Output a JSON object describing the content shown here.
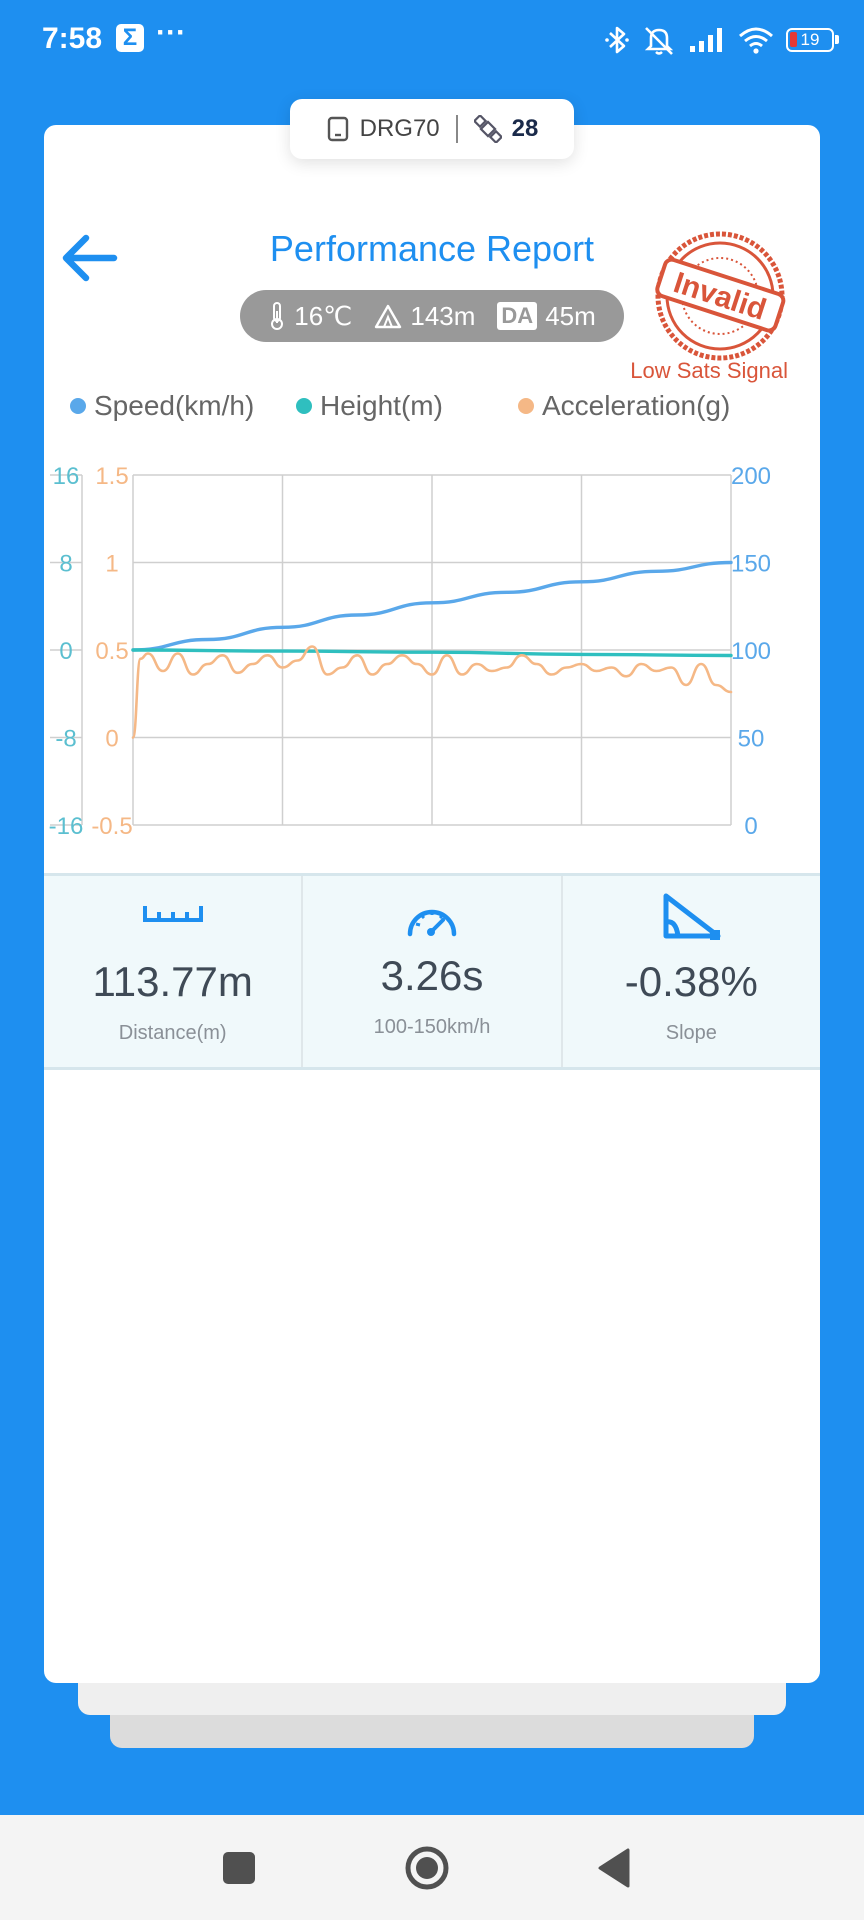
{
  "status_bar": {
    "time": "7:58",
    "app_icon": "sigma-icon",
    "sigma_glyph": "Σ",
    "overflow": "···",
    "battery_level": "19",
    "icons": [
      "bluetooth-icon",
      "mute-icon",
      "signal-icon",
      "wifi-icon",
      "battery-icon"
    ]
  },
  "device": {
    "name": "DRG70",
    "satellites": "28"
  },
  "header": {
    "title": "Performance Report",
    "temperature": "16℃",
    "altitude": "143m",
    "da_label": "DA",
    "density_altitude": "45m",
    "stamp_text": "Invalid",
    "warning": "Low Sats Signal"
  },
  "legend": [
    {
      "label": "Speed(km/h)",
      "color": "#5aa8ea"
    },
    {
      "label": "Height(m)",
      "color": "#2fbfbf"
    },
    {
      "label": "Acceleration(g)",
      "color": "#f5b886"
    }
  ],
  "chart_data": {
    "type": "line",
    "x_range": [
      0,
      4
    ],
    "grid": true,
    "axes": {
      "height": {
        "ticks": [
          "16",
          "8",
          "0",
          "-8",
          "-16"
        ],
        "ylim": [
          -16,
          16
        ],
        "color": "#5bbfd0"
      },
      "acceleration": {
        "ticks": [
          "1.5",
          "1",
          "0.5",
          "0",
          "-0.5"
        ],
        "ylim": [
          -0.5,
          1.5
        ],
        "color": "#f5b886"
      },
      "speed": {
        "ticks": [
          "200",
          "150",
          "100",
          "50",
          "0"
        ],
        "ylim": [
          0,
          200
        ],
        "color": "#5aa8ea"
      }
    },
    "series": [
      {
        "name": "Speed(km/h)",
        "axis": "speed",
        "color": "#5aa8ea",
        "x": [
          0,
          0.5,
          1,
          1.5,
          2,
          2.5,
          3,
          3.5,
          4
        ],
        "y": [
          100,
          106,
          113,
          120,
          127,
          133,
          139,
          145,
          150
        ]
      },
      {
        "name": "Height(m)",
        "axis": "height",
        "color": "#2fbfbf",
        "x": [
          0,
          1,
          2,
          3,
          4
        ],
        "y": [
          0,
          -0.1,
          -0.2,
          -0.4,
          -0.5
        ]
      },
      {
        "name": "Acceleration(g)",
        "axis": "acceleration",
        "color": "#f5b886",
        "x": [
          0,
          0.05,
          0.1,
          0.2,
          0.3,
          0.4,
          0.5,
          0.6,
          0.7,
          0.8,
          0.9,
          1.0,
          1.1,
          1.2,
          1.3,
          1.4,
          1.5,
          1.6,
          1.7,
          1.8,
          1.9,
          2.0,
          2.1,
          2.2,
          2.3,
          2.4,
          2.5,
          2.6,
          2.7,
          2.8,
          2.9,
          3.0,
          3.1,
          3.2,
          3.3,
          3.4,
          3.5,
          3.6,
          3.7,
          3.8,
          3.9,
          4.0
        ],
        "y": [
          0.0,
          0.45,
          0.48,
          0.38,
          0.48,
          0.36,
          0.42,
          0.47,
          0.37,
          0.42,
          0.47,
          0.4,
          0.44,
          0.52,
          0.36,
          0.4,
          0.47,
          0.36,
          0.42,
          0.47,
          0.42,
          0.36,
          0.47,
          0.36,
          0.42,
          0.38,
          0.4,
          0.47,
          0.42,
          0.36,
          0.4,
          0.42,
          0.38,
          0.4,
          0.35,
          0.42,
          0.38,
          0.4,
          0.3,
          0.42,
          0.3,
          0.26
        ]
      }
    ]
  },
  "stats": [
    {
      "icon": "ruler-icon",
      "value": "113.77m",
      "label": "Distance(m)"
    },
    {
      "icon": "speedometer-icon",
      "value": "3.26s",
      "label": "100-150km/h"
    },
    {
      "icon": "slope-icon",
      "value": "-0.38%",
      "label": "Slope"
    }
  ],
  "nav": [
    "recents-square-icon",
    "home-circle-icon",
    "back-triangle-icon"
  ]
}
